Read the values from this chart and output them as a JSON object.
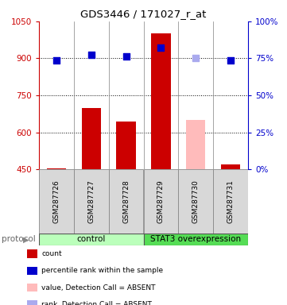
{
  "title": "GDS3446 / 171027_r_at",
  "samples": [
    "GSM287726",
    "GSM287727",
    "GSM287728",
    "GSM287729",
    "GSM287730",
    "GSM287731"
  ],
  "bar_values": [
    455,
    700,
    645,
    1000,
    null,
    470
  ],
  "bar_color": "#cc0000",
  "bar_absent_values": [
    null,
    null,
    null,
    null,
    650,
    null
  ],
  "bar_absent_color": "#ffbbbb",
  "dot_values": [
    73.5,
    77.5,
    76.5,
    82.0,
    75.5,
    73.5
  ],
  "dot_absent": [
    false,
    false,
    false,
    false,
    true,
    false
  ],
  "dot_color_present": "#0000cc",
  "dot_color_absent": "#aaaaee",
  "ylim_left": [
    450,
    1050
  ],
  "ylim_right": [
    0,
    100
  ],
  "yticks_left": [
    450,
    600,
    750,
    900,
    1050
  ],
  "yticks_right": [
    0,
    25,
    50,
    75,
    100
  ],
  "grid_values": [
    600,
    750,
    900
  ],
  "protocol_groups": [
    {
      "label": "control",
      "start": 0,
      "end": 3,
      "color": "#bbffbb"
    },
    {
      "label": "STAT3 overexpression",
      "start": 3,
      "end": 6,
      "color": "#55dd55"
    }
  ],
  "legend_items": [
    {
      "color": "#cc0000",
      "label": "count"
    },
    {
      "color": "#0000cc",
      "label": "percentile rank within the sample"
    },
    {
      "color": "#ffbbbb",
      "label": "value, Detection Call = ABSENT"
    },
    {
      "color": "#aaaaee",
      "label": "rank, Detection Call = ABSENT"
    }
  ],
  "bar_width": 0.55,
  "dot_size": 40,
  "n_samples": 6
}
